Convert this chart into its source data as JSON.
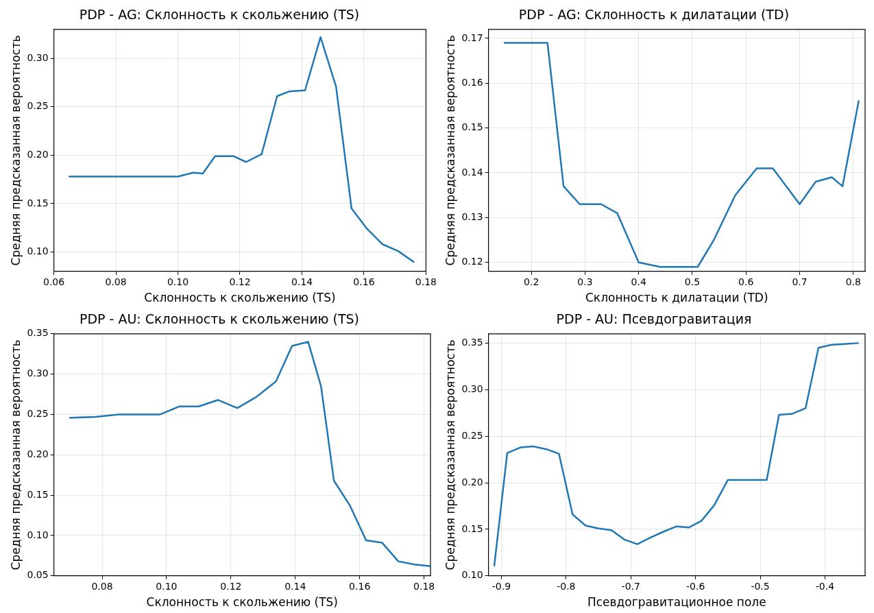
{
  "chart_data": [
    {
      "type": "line",
      "title": "PDP - AG: Склонность к скольжению (TS)",
      "xlabel": "Склонность к скольжению (TS)",
      "ylabel": "Средняя предсказанная вероятность",
      "grid": true,
      "legend": false,
      "marker": "none",
      "line_style": "solid",
      "xlim": [
        0.06,
        0.18
      ],
      "xticks": [
        0.06,
        0.08,
        {
          "value": 0.1,
          "label": "0.10"
        },
        0.12,
        0.14,
        0.16,
        0.18
      ],
      "ylim": [
        0.08,
        0.33
      ],
      "yticks": [
        {
          "value": 0.1,
          "label": "0.10"
        },
        0.15,
        {
          "value": 0.2,
          "label": "0.20"
        },
        0.25,
        {
          "value": 0.3,
          "label": "0.30"
        }
      ],
      "x": [
        0.065,
        0.1,
        0.105,
        0.108,
        0.112,
        0.118,
        0.122,
        0.127,
        0.132,
        0.136,
        0.141,
        0.146,
        0.151,
        0.156,
        0.161,
        0.166,
        0.171,
        0.176
      ],
      "series": [
        {
          "color": "#1f77b4",
          "values": [
            0.178,
            0.178,
            0.182,
            0.181,
            0.199,
            0.199,
            0.193,
            0.201,
            0.261,
            0.266,
            0.267,
            0.322,
            0.271,
            0.145,
            0.124,
            0.108,
            0.101,
            0.09
          ]
        }
      ]
    },
    {
      "type": "line",
      "title": "PDP - AG: Склонность к дилатации (TD)",
      "xlabel": "Склонность к дилатации (TD)",
      "ylabel": "Средняя предсказанная вероятность",
      "grid": true,
      "legend": false,
      "marker": "none",
      "line_style": "solid",
      "xlim": [
        0.12,
        0.822
      ],
      "xticks": [
        0.2,
        0.3,
        0.4,
        0.5,
        0.6,
        0.7,
        0.8
      ],
      "ylim": [
        0.118,
        0.172
      ],
      "yticks": [
        0.12,
        0.13,
        0.14,
        0.15,
        0.16,
        0.17
      ],
      "x": [
        0.15,
        0.23,
        0.26,
        0.29,
        0.33,
        0.36,
        0.4,
        0.44,
        0.51,
        0.54,
        0.58,
        0.62,
        0.65,
        0.7,
        0.73,
        0.76,
        0.78,
        0.81
      ],
      "series": [
        {
          "color": "#1f77b4",
          "values": [
            0.169,
            0.169,
            0.137,
            0.133,
            0.133,
            0.131,
            0.12,
            0.119,
            0.119,
            0.125,
            0.135,
            0.141,
            0.141,
            0.133,
            0.138,
            0.139,
            0.137,
            0.156
          ]
        }
      ]
    },
    {
      "type": "line",
      "title": "PDP - AU: Склонность к скольжению (TS)",
      "xlabel": "Склонность к скольжению (TS)",
      "ylabel": "Средняя предсказанная вероятность",
      "grid": true,
      "legend": false,
      "marker": "none",
      "line_style": "solid",
      "xlim": [
        0.065,
        0.182
      ],
      "xticks": [
        0.08,
        {
          "value": 0.1,
          "label": "0.10"
        },
        0.12,
        0.14,
        0.16,
        0.18
      ],
      "ylim": [
        0.05,
        0.35
      ],
      "yticks": [
        0.05,
        {
          "value": 0.1,
          "label": "0.10"
        },
        0.15,
        {
          "value": 0.2,
          "label": "0.20"
        },
        0.25,
        {
          "value": 0.3,
          "label": "0.30"
        },
        0.35
      ],
      "x": [
        0.07,
        0.078,
        0.085,
        0.098,
        0.104,
        0.11,
        0.116,
        0.122,
        0.128,
        0.134,
        0.139,
        0.144,
        0.148,
        0.152,
        0.157,
        0.162,
        0.167,
        0.172,
        0.177,
        0.182
      ],
      "series": [
        {
          "color": "#1f77b4",
          "values": [
            0.246,
            0.247,
            0.25,
            0.25,
            0.26,
            0.26,
            0.268,
            0.258,
            0.272,
            0.291,
            0.335,
            0.34,
            0.285,
            0.168,
            0.137,
            0.094,
            0.091,
            0.068,
            0.064,
            0.062
          ]
        }
      ]
    },
    {
      "type": "line",
      "title": "PDP - AU: Псевдогравитация",
      "xlabel": "Псевдогравитационное поле",
      "ylabel": "Средняя предсказанная вероятность",
      "grid": true,
      "legend": false,
      "marker": "none",
      "line_style": "solid",
      "xlim": [
        -0.92,
        -0.338
      ],
      "xticks": [
        -0.9,
        -0.8,
        -0.7,
        -0.6,
        -0.5,
        -0.4
      ],
      "ylim": [
        0.1,
        0.36
      ],
      "yticks": [
        {
          "value": 0.1,
          "label": "0.10"
        },
        0.15,
        {
          "value": 0.2,
          "label": "0.20"
        },
        0.25,
        {
          "value": 0.3,
          "label": "0.30"
        },
        0.35
      ],
      "x": [
        -0.911,
        -0.891,
        -0.87,
        -0.851,
        -0.83,
        -0.811,
        -0.79,
        -0.77,
        -0.751,
        -0.73,
        -0.71,
        -0.69,
        -0.67,
        -0.651,
        -0.63,
        -0.61,
        -0.591,
        -0.571,
        -0.55,
        -0.49,
        -0.471,
        -0.451,
        -0.43,
        -0.41,
        -0.391,
        -0.37,
        -0.349
      ],
      "series": [
        {
          "color": "#1f77b4",
          "values": [
            0.111,
            0.232,
            0.238,
            0.239,
            0.236,
            0.231,
            0.166,
            0.154,
            0.151,
            0.149,
            0.139,
            0.134,
            0.141,
            0.147,
            0.153,
            0.152,
            0.159,
            0.176,
            0.203,
            0.203,
            0.273,
            0.274,
            0.28,
            0.345,
            0.348,
            0.349,
            0.35
          ]
        }
      ]
    }
  ]
}
